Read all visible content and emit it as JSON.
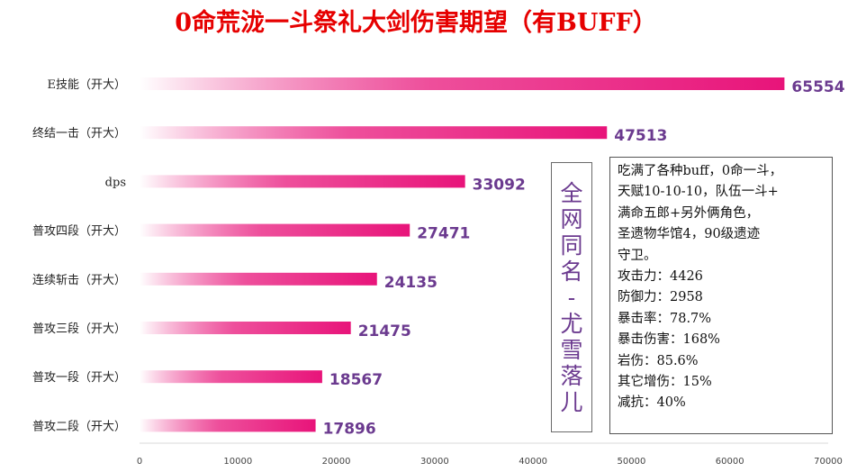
{
  "chart_data": {
    "type": "bar",
    "orientation": "horizontal",
    "title": "0命荒泷一斗祭礼大剑伤害期望（有BUFF）",
    "categories": [
      "E技能（开大）",
      "终结一击（开大）",
      "dps",
      "普攻四段（开大）",
      "连续斩击（开大）",
      "普攻三段（开大）",
      "普攻一段（开大）",
      "普攻二段（开大）"
    ],
    "values": [
      65554,
      47513,
      33092,
      27471,
      24135,
      21475,
      18567,
      17896
    ],
    "xlim": [
      0,
      70000
    ],
    "x_ticks": [
      0,
      10000,
      20000,
      30000,
      40000,
      50000,
      60000,
      70000
    ],
    "grid": false,
    "colors": {
      "bar": "#e8147a",
      "bar_fade": "#ffffff",
      "title": "#e60000",
      "value_label": "#6b3a8f"
    }
  },
  "watermark": {
    "chars": [
      "全",
      "网",
      "同",
      "名",
      "-",
      "尤",
      "雪",
      "落",
      "儿"
    ]
  },
  "info_box": {
    "lines": [
      "吃满了各种buff，0命一斗，",
      "天赋10-10-10，队伍一斗+",
      "满命五郎+另外俩角色，",
      "圣遗物华馆4，90级遗迹",
      "守卫。",
      "攻击力：4426",
      "防御力：2958",
      "暴击率：78.7%",
      "暴击伤害：168%",
      "岩伤：85.6%",
      "其它增伤：15%",
      "减抗：40%"
    ]
  }
}
